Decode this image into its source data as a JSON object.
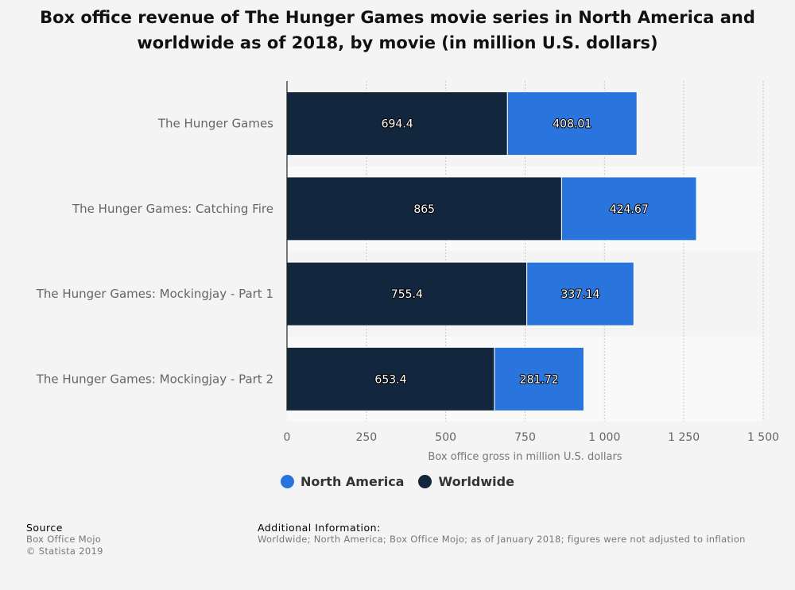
{
  "chart_data": {
    "type": "bar",
    "orientation": "horizontal",
    "stacked": true,
    "title": "Box office revenue of The Hunger Games movie series in North America and worldwide as of 2018, by movie (in million U.S. dollars)",
    "categories": [
      "The Hunger Games",
      "The Hunger Games: Catching Fire",
      "The Hunger Games: Mockingjay - Part 1",
      "The Hunger Games: Mockingjay - Part 2"
    ],
    "series": [
      {
        "name": "Worldwide",
        "color": "#12263d",
        "values": [
          694.4,
          865,
          755.4,
          653.4
        ],
        "labels": [
          "694.4",
          "865",
          "755.4",
          "653.4"
        ]
      },
      {
        "name": "North America",
        "color": "#2a75dd",
        "values": [
          408.01,
          424.67,
          337.14,
          281.72
        ],
        "labels": [
          "408.01",
          "424.67",
          "337.14",
          "281.72"
        ]
      }
    ],
    "xlabel": "Box office gross in million U.S. dollars",
    "xlim": [
      0,
      1500
    ],
    "xticks": [
      0,
      250,
      500,
      750,
      1000,
      1250,
      1500
    ],
    "xtick_labels": [
      "0",
      "250",
      "500",
      "750",
      "1 000",
      "1 250",
      "1 500"
    ],
    "grid": true,
    "legend_position": "bottom-center"
  },
  "legend": {
    "items": [
      {
        "label": "North America",
        "color": "#2a75dd"
      },
      {
        "label": "Worldwide",
        "color": "#12263d"
      }
    ]
  },
  "footer": {
    "source_label": "Source",
    "source_lines": [
      "Box Office Mojo",
      "© Statista 2019"
    ],
    "info_label": "Additional Information:",
    "info_text": "Worldwide; North America; Box Office Mojo; as of January 2018; figures were not adjusted to inflation"
  }
}
